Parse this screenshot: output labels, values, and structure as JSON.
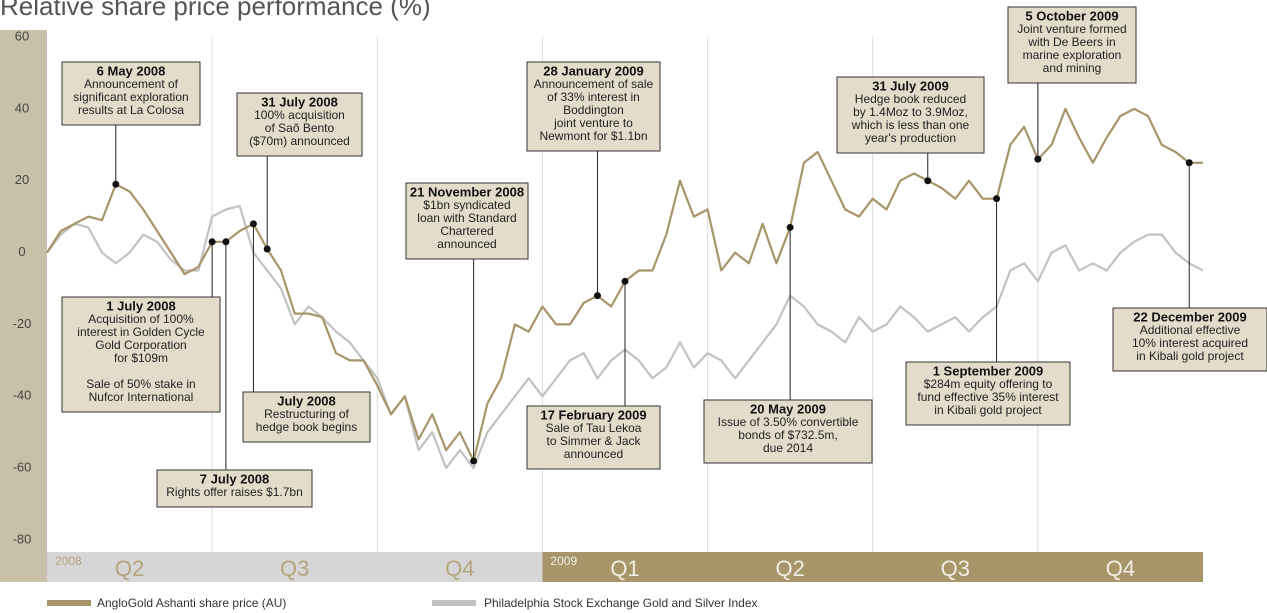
{
  "chart_data": {
    "type": "line",
    "title": "Relative share price performance (%)",
    "ylim": [
      -80,
      60
    ],
    "yticks": [
      60,
      40,
      20,
      0,
      -20,
      -40,
      -60,
      -80
    ],
    "years": [
      {
        "year": "2008",
        "color": "#d6d6d6",
        "text_color": "#b5a57e",
        "quarters": [
          "Q2",
          "Q3",
          "Q4"
        ]
      },
      {
        "year": "2009",
        "color": "#a8956a",
        "text_color": "#f3eee2",
        "quarters": [
          "Q1",
          "Q2",
          "Q3",
          "Q4"
        ]
      }
    ],
    "series": [
      {
        "name": "AngloGold Ashanti share price (AU)",
        "color": "#a8956a",
        "values": [
          0,
          6,
          8,
          10,
          9,
          19,
          17,
          12,
          6,
          0,
          -6,
          -4,
          3,
          3,
          6,
          8,
          1,
          -5,
          -17,
          -17,
          -18,
          -28,
          -30,
          -30,
          -37,
          -45,
          -40,
          -52,
          -45,
          -55,
          -50,
          -58,
          -42,
          -35,
          -20,
          -22,
          -15,
          -20,
          -20,
          -14,
          -12,
          -15,
          -8,
          -5,
          -5,
          5,
          20,
          10,
          12,
          -5,
          0,
          -3,
          8,
          -3,
          7,
          25,
          28,
          20,
          12,
          10,
          15,
          12,
          20,
          22,
          20,
          18,
          15,
          20,
          15,
          15,
          30,
          35,
          26,
          30,
          40,
          32,
          25,
          32,
          38,
          40,
          38,
          30,
          28,
          25,
          25
        ]
      },
      {
        "name": "Philadelphia Stock Exchange Gold and Silver Index",
        "color": "#c2c2c2",
        "values": [
          0,
          5,
          8,
          7,
          0,
          -3,
          0,
          5,
          3,
          -2,
          -5,
          -5,
          10,
          12,
          13,
          0,
          -5,
          -10,
          -20,
          -15,
          -18,
          -22,
          -25,
          -30,
          -35,
          -45,
          -40,
          -55,
          -50,
          -60,
          -55,
          -60,
          -50,
          -45,
          -40,
          -35,
          -40,
          -35,
          -30,
          -28,
          -35,
          -30,
          -27,
          -30,
          -35,
          -32,
          -25,
          -32,
          -28,
          -30,
          -35,
          -30,
          -25,
          -20,
          -12,
          -15,
          -20,
          -22,
          -25,
          -18,
          -22,
          -20,
          -15,
          -18,
          -22,
          -20,
          -18,
          -22,
          -18,
          -15,
          -5,
          -3,
          -8,
          0,
          2,
          -5,
          -3,
          -5,
          0,
          3,
          5,
          5,
          0,
          -3,
          -5
        ]
      }
    ],
    "annotations": [
      {
        "title": "6 May 2008",
        "paragraphs": [
          [
            "Announcement of",
            "significant exploration",
            "results at La Colosa"
          ]
        ]
      },
      {
        "title": "31 July 2008",
        "paragraphs": [
          [
            "100% acquisition",
            "of Saõ Bento",
            "($70m) announced"
          ]
        ]
      },
      {
        "title": "1 July 2008",
        "paragraphs": [
          [
            "Acquisition of 100%",
            "interest in Golden Cycle",
            "Gold Corporation",
            "for $109m"
          ],
          [
            "Sale of 50% stake in",
            "Nufcor International"
          ]
        ]
      },
      {
        "title": "7 July 2008",
        "paragraphs": [
          [
            "Rights offer raises $1.7bn"
          ]
        ]
      },
      {
        "title": "July 2008",
        "paragraphs": [
          [
            "Restructuring of",
            "hedge book begins"
          ]
        ]
      },
      {
        "title": "21 November 2008",
        "paragraphs": [
          [
            "$1bn syndicated",
            "loan with Standard",
            "Chartered",
            "announced"
          ]
        ]
      },
      {
        "title": "28 January 2009",
        "paragraphs": [
          [
            "Announcement of sale",
            "of 33% interest  in",
            "Boddington",
            "joint venture to",
            "Newmont for $1.1bn"
          ]
        ]
      },
      {
        "title": "17 February 2009",
        "paragraphs": [
          [
            "Sale of Tau Lekoa",
            "to Simmer & Jack",
            "announced"
          ]
        ]
      },
      {
        "title": "20 May 2009",
        "paragraphs": [
          [
            "Issue of 3.50% convertible",
            "bonds of $732.5m,",
            "due 2014"
          ]
        ]
      },
      {
        "title": "31 July 2009",
        "paragraphs": [
          [
            "Hedge book reduced",
            "by 1.4Moz to 3.9Moz,",
            "which is less than one",
            "year's production"
          ]
        ]
      },
      {
        "title": "1 September 2009",
        "paragraphs": [
          [
            "$284m equity offering to",
            "fund effective 35% interest",
            "in Kibali gold project"
          ]
        ]
      },
      {
        "title": "5 October 2009",
        "paragraphs": [
          [
            "Joint venture formed",
            "with De Beers in",
            "marine exploration",
            "and mining"
          ]
        ]
      },
      {
        "title": "22 December 2009",
        "paragraphs": [
          [
            "Additional effective",
            "10% interest acquired",
            "in Kibali gold project"
          ]
        ]
      }
    ]
  }
}
